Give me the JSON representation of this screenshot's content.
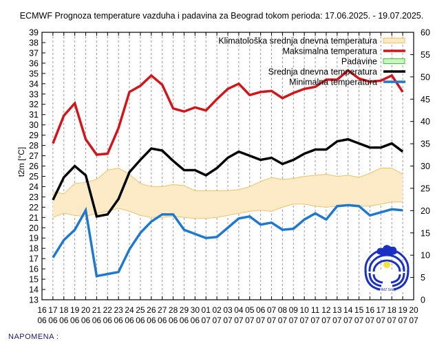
{
  "chart_data": {
    "type": "line",
    "title": "ECMWF Prognoza temperature vazduha i padavina za Beograd tokom perioda: 17.06.2025. - 19.07.2025.",
    "ylabel": "t2m [°C]",
    "y2label": "",
    "ylim": [
      13,
      39
    ],
    "y2lim": [
      0,
      60
    ],
    "yticks": [
      "13",
      "14",
      "15",
      "16",
      "17",
      "18",
      "19",
      "20",
      "21",
      "22",
      "23",
      "24",
      "25",
      "26",
      "27",
      "28",
      "29",
      "30",
      "31",
      "32",
      "33",
      "34",
      "35",
      "36",
      "37",
      "38",
      "39"
    ],
    "y2ticks": [
      "0",
      "5",
      "10",
      "15",
      "20",
      "25",
      "30",
      "35",
      "40",
      "45",
      "50",
      "55",
      "60"
    ],
    "xticks": [
      [
        "16",
        "06"
      ],
      [
        "17",
        "06"
      ],
      [
        "18",
        "06"
      ],
      [
        "19",
        "06"
      ],
      [
        "20",
        "06"
      ],
      [
        "21",
        "06"
      ],
      [
        "22",
        "06"
      ],
      [
        "23",
        "06"
      ],
      [
        "24",
        "06"
      ],
      [
        "25",
        "06"
      ],
      [
        "26",
        "06"
      ],
      [
        "27",
        "06"
      ],
      [
        "28",
        "06"
      ],
      [
        "29",
        "06"
      ],
      [
        "30",
        "06"
      ],
      [
        "01",
        "07"
      ],
      [
        "02",
        "07"
      ],
      [
        "03",
        "07"
      ],
      [
        "04",
        "07"
      ],
      [
        "05",
        "07"
      ],
      [
        "06",
        "07"
      ],
      [
        "07",
        "07"
      ],
      [
        "08",
        "07"
      ],
      [
        "09",
        "07"
      ],
      [
        "10",
        "07"
      ],
      [
        "11",
        "07"
      ],
      [
        "12",
        "07"
      ],
      [
        "13",
        "07"
      ],
      [
        "14",
        "07"
      ],
      [
        "15",
        "07"
      ],
      [
        "16",
        "07"
      ],
      [
        "17",
        "07"
      ],
      [
        "18",
        "07"
      ],
      [
        "19",
        "07"
      ],
      [
        "20",
        "07"
      ]
    ],
    "x_start_index": 1,
    "grid": "vertical-dashed",
    "legend_position": "top-right",
    "legend": [
      {
        "label": "Klimatološka srednja dnevna temperatura",
        "kind": "band",
        "color": "#fde9c0",
        "edge": "#e8c36a"
      },
      {
        "label": "Maksimalna temperatura",
        "kind": "line",
        "color": "#d0151b"
      },
      {
        "label": "Padavine",
        "kind": "band",
        "color": "#c8f7c0",
        "edge": "#3fbf3f"
      },
      {
        "label": "Srednja dnevna temperatura",
        "kind": "line",
        "color": "#000000"
      },
      {
        "label": "Minimalna temperatura",
        "kind": "line",
        "color": "#1f78d0"
      }
    ],
    "series": [
      {
        "name": "Maksimalna temperatura",
        "color": "#d0151b",
        "values": [
          28.2,
          30.9,
          32.1,
          28.6,
          27.1,
          27.2,
          29.7,
          33.2,
          33.8,
          34.8,
          33.9,
          31.6,
          31.3,
          31.7,
          31.4,
          32.5,
          33.5,
          34.0,
          32.9,
          33.2,
          33.3,
          32.6,
          33.1,
          33.5,
          33.7,
          34.4,
          34.4,
          35.3,
          34.5,
          34.2,
          34.3,
          34.8,
          33.2
        ]
      },
      {
        "name": "Srednja dnevna temperatura",
        "color": "#000000",
        "values": [
          22.7,
          24.9,
          26.0,
          25.1,
          21.1,
          21.3,
          22.8,
          25.4,
          26.6,
          27.7,
          27.5,
          26.5,
          25.6,
          25.6,
          25.1,
          25.8,
          26.8,
          27.4,
          27.0,
          26.6,
          26.8,
          26.2,
          26.6,
          27.2,
          27.6,
          27.6,
          28.4,
          28.6,
          28.2,
          27.8,
          27.8,
          28.2,
          27.4
        ]
      },
      {
        "name": "Minimalna temperatura",
        "color": "#1f78d0",
        "values": [
          17.1,
          18.8,
          19.8,
          21.7,
          15.3,
          15.5,
          15.7,
          17.9,
          19.5,
          20.6,
          21.3,
          21.3,
          19.8,
          19.4,
          19.0,
          19.1,
          20.0,
          20.9,
          21.1,
          20.3,
          20.5,
          19.8,
          19.9,
          20.8,
          21.4,
          20.8,
          22.1,
          22.2,
          22.1,
          21.2,
          21.5,
          21.8,
          21.7
        ]
      },
      {
        "name": "Klimatološka srednja dnevna temperatura (gornja granica)",
        "values": [
          23.5,
          23.3,
          24.3,
          24.4,
          24.7,
          25.6,
          25.8,
          25.2,
          24.3,
          24.0,
          24.0,
          24.2,
          24.1,
          23.6,
          23.6,
          23.6,
          23.6,
          23.7,
          24.0,
          24.5,
          24.9,
          24.7,
          24.8,
          25.0,
          25.1,
          25.2,
          25.0,
          25.1,
          24.9,
          25.3,
          25.8,
          25.8,
          25.2
        ]
      },
      {
        "name": "Klimatološka srednja dnevna temperatura (donja granica)",
        "values": [
          21.0,
          21.4,
          21.2,
          21.1,
          21.4,
          21.6,
          21.9,
          21.6,
          21.2,
          21.0,
          21.0,
          21.1,
          21.0,
          20.9,
          20.9,
          21.0,
          21.2,
          21.4,
          21.6,
          21.7,
          21.6,
          22.0,
          22.3,
          22.3,
          22.1,
          22.0,
          22.1,
          22.2,
          22.1,
          22.1,
          22.3,
          22.5,
          22.5
        ]
      },
      {
        "name": "Padavine",
        "values": []
      }
    ]
  },
  "footer": {
    "note": "NAPOMENA :"
  },
  "logo": {
    "caption": "RHMZ Srbije"
  }
}
